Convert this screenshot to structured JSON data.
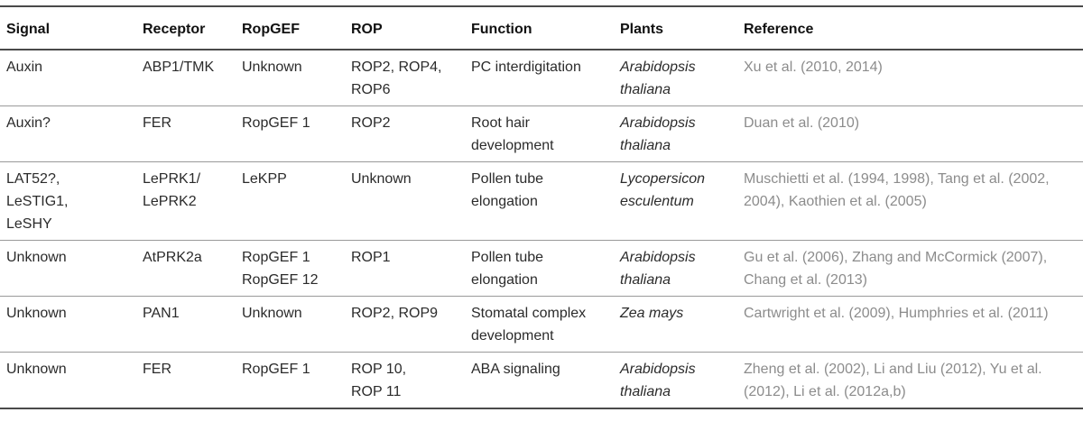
{
  "table": {
    "headers": [
      "Signal",
      "Receptor",
      "RopGEF",
      "ROP",
      "Function",
      "Plants",
      "Reference"
    ],
    "rows": [
      {
        "signal": [
          "Auxin"
        ],
        "receptor": [
          "ABP1/TMK"
        ],
        "ropgef": [
          "Unknown"
        ],
        "rop": [
          "ROP2, ROP4,",
          "ROP6"
        ],
        "function": [
          "PC interdigitation"
        ],
        "plants": [
          "Arabidopsis",
          "thaliana"
        ],
        "reference": [
          "Xu et al. (2010, 2014)"
        ]
      },
      {
        "signal": [
          "Auxin?"
        ],
        "receptor": [
          "FER"
        ],
        "ropgef": [
          "RopGEF 1"
        ],
        "rop": [
          "ROP2"
        ],
        "function": [
          "Root hair",
          "development"
        ],
        "plants": [
          "Arabidopsis",
          "thaliana"
        ],
        "reference": [
          "Duan et al. (2010)"
        ]
      },
      {
        "signal": [
          "LAT52?,",
          "LeSTIG1,",
          "LeSHY"
        ],
        "receptor": [
          "LePRK1/",
          "LePRK2"
        ],
        "ropgef": [
          "LeKPP"
        ],
        "rop": [
          "Unknown"
        ],
        "function": [
          "Pollen tube",
          "elongation"
        ],
        "plants": [
          "Lycopersicon",
          "esculentum"
        ],
        "reference": [
          "Muschietti et al. (1994, 1998), Tang et al. (2002,",
          "2004), Kaothien et al. (2005)"
        ]
      },
      {
        "signal": [
          "Unknown"
        ],
        "receptor": [
          "AtPRK2a"
        ],
        "ropgef": [
          "RopGEF 1",
          "RopGEF 12"
        ],
        "rop": [
          "ROP1"
        ],
        "function": [
          "Pollen tube",
          "elongation"
        ],
        "plants": [
          "Arabidopsis",
          "thaliana"
        ],
        "reference": [
          "Gu et al. (2006), Zhang and McCormick (2007),",
          "Chang et al. (2013)"
        ]
      },
      {
        "signal": [
          "Unknown"
        ],
        "receptor": [
          "PAN1"
        ],
        "ropgef": [
          "Unknown"
        ],
        "rop": [
          "ROP2, ROP9"
        ],
        "function": [
          "Stomatal complex",
          "development"
        ],
        "plants": [
          "Zea mays"
        ],
        "reference": [
          "Cartwright et al. (2009), Humphries et al. (2011)"
        ]
      },
      {
        "signal": [
          "Unknown"
        ],
        "receptor": [
          "FER"
        ],
        "ropgef": [
          "RopGEF 1"
        ],
        "rop": [
          "ROP 10,",
          "ROP 11"
        ],
        "function": [
          "ABA signaling"
        ],
        "plants": [
          "Arabidopsis",
          "thaliana"
        ],
        "reference": [
          "Zheng et al. (2002), Li and Liu (2012), Yu et al.",
          "(2012), Li et al. (2012a,b)"
        ]
      }
    ]
  }
}
